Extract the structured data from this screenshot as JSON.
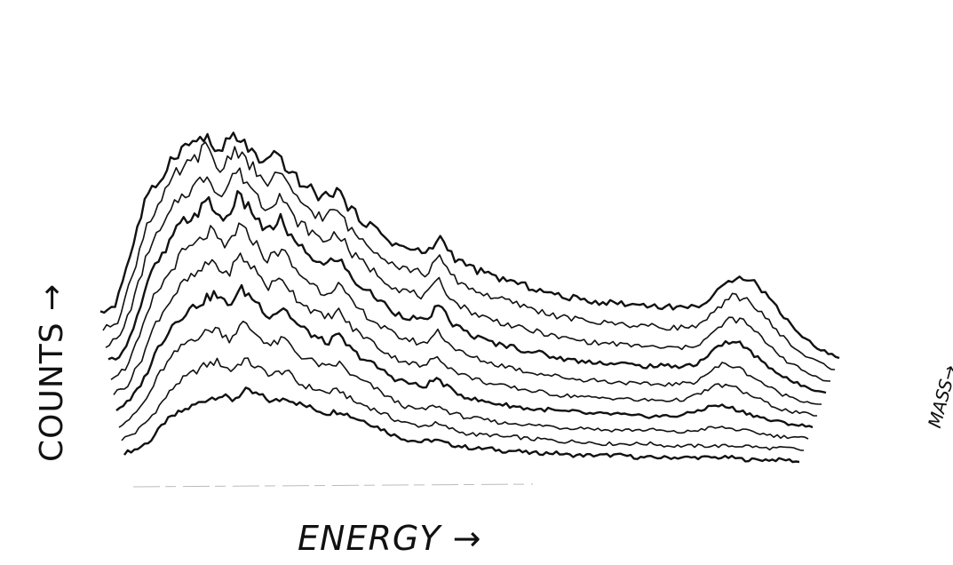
{
  "chart_data": {
    "type": "line",
    "style": "stacked-waterfall",
    "xlabel": "ENERGY →",
    "ylabel": "COUNTS →",
    "zlabel": "MASS→",
    "grid": false,
    "legend": "none",
    "line_color": "#111111",
    "x": [
      0,
      0.02,
      0.04,
      0.06,
      0.08,
      0.1,
      0.12,
      0.14,
      0.16,
      0.18,
      0.2,
      0.22,
      0.24,
      0.26,
      0.28,
      0.3,
      0.32,
      0.34,
      0.36,
      0.38,
      0.4,
      0.42,
      0.44,
      0.46,
      0.48,
      0.5,
      0.52,
      0.54,
      0.56,
      0.58,
      0.6,
      0.62,
      0.64,
      0.66,
      0.68,
      0.7,
      0.72,
      0.74,
      0.76,
      0.78,
      0.8,
      0.82,
      0.84,
      0.86,
      0.88,
      0.9,
      0.92,
      0.94,
      0.96,
      0.98,
      1.0
    ],
    "series": [
      {
        "values": [
          0.04,
          0.06,
          0.1,
          0.18,
          0.22,
          0.25,
          0.28,
          0.3,
          0.28,
          0.32,
          0.3,
          0.27,
          0.29,
          0.26,
          0.24,
          0.22,
          0.23,
          0.2,
          0.18,
          0.15,
          0.12,
          0.1,
          0.09,
          0.1,
          0.08,
          0.07,
          0.06,
          0.06,
          0.05,
          0.05,
          0.04,
          0.04,
          0.04,
          0.03,
          0.03,
          0.03,
          0.03,
          0.03,
          0.02,
          0.02,
          0.02,
          0.02,
          0.02,
          0.02,
          0.02,
          0.02,
          0.01,
          0.01,
          0.01,
          0.01,
          0.0
        ]
      },
      {
        "values": [
          0.05,
          0.08,
          0.14,
          0.22,
          0.3,
          0.34,
          0.38,
          0.4,
          0.36,
          0.41,
          0.37,
          0.34,
          0.36,
          0.3,
          0.28,
          0.26,
          0.27,
          0.22,
          0.2,
          0.17,
          0.14,
          0.12,
          0.11,
          0.12,
          0.1,
          0.08,
          0.07,
          0.07,
          0.06,
          0.06,
          0.05,
          0.05,
          0.04,
          0.04,
          0.04,
          0.03,
          0.03,
          0.03,
          0.03,
          0.03,
          0.02,
          0.02,
          0.02,
          0.02,
          0.02,
          0.02,
          0.02,
          0.01,
          0.01,
          0.01,
          0.0
        ]
      },
      {
        "values": [
          0.06,
          0.1,
          0.18,
          0.3,
          0.38,
          0.44,
          0.47,
          0.5,
          0.45,
          0.52,
          0.47,
          0.42,
          0.45,
          0.38,
          0.35,
          0.32,
          0.34,
          0.28,
          0.25,
          0.21,
          0.17,
          0.14,
          0.13,
          0.15,
          0.12,
          0.1,
          0.09,
          0.08,
          0.07,
          0.07,
          0.06,
          0.06,
          0.05,
          0.05,
          0.05,
          0.04,
          0.04,
          0.04,
          0.04,
          0.04,
          0.03,
          0.03,
          0.04,
          0.05,
          0.05,
          0.04,
          0.03,
          0.02,
          0.01,
          0.01,
          0.0
        ]
      },
      {
        "values": [
          0.08,
          0.12,
          0.22,
          0.36,
          0.46,
          0.52,
          0.56,
          0.6,
          0.55,
          0.62,
          0.57,
          0.5,
          0.54,
          0.46,
          0.42,
          0.38,
          0.41,
          0.34,
          0.3,
          0.26,
          0.22,
          0.2,
          0.18,
          0.22,
          0.17,
          0.14,
          0.12,
          0.11,
          0.1,
          0.09,
          0.08,
          0.08,
          0.07,
          0.07,
          0.06,
          0.06,
          0.06,
          0.05,
          0.05,
          0.05,
          0.05,
          0.06,
          0.08,
          0.1,
          0.09,
          0.07,
          0.05,
          0.03,
          0.02,
          0.01,
          0.0
        ]
      },
      {
        "values": [
          0.1,
          0.14,
          0.26,
          0.42,
          0.52,
          0.6,
          0.64,
          0.7,
          0.63,
          0.72,
          0.66,
          0.58,
          0.62,
          0.53,
          0.48,
          0.44,
          0.47,
          0.39,
          0.35,
          0.3,
          0.26,
          0.24,
          0.22,
          0.27,
          0.21,
          0.18,
          0.16,
          0.14,
          0.13,
          0.12,
          0.11,
          0.1,
          0.09,
          0.09,
          0.08,
          0.08,
          0.08,
          0.07,
          0.07,
          0.07,
          0.07,
          0.08,
          0.11,
          0.14,
          0.13,
          0.1,
          0.07,
          0.04,
          0.02,
          0.01,
          0.0
        ]
      },
      {
        "values": [
          0.12,
          0.16,
          0.3,
          0.48,
          0.58,
          0.68,
          0.72,
          0.78,
          0.7,
          0.8,
          0.74,
          0.65,
          0.7,
          0.6,
          0.55,
          0.5,
          0.54,
          0.45,
          0.4,
          0.35,
          0.31,
          0.29,
          0.27,
          0.33,
          0.26,
          0.22,
          0.2,
          0.18,
          0.17,
          0.15,
          0.14,
          0.13,
          0.12,
          0.11,
          0.11,
          0.1,
          0.1,
          0.09,
          0.09,
          0.09,
          0.09,
          0.1,
          0.14,
          0.18,
          0.17,
          0.13,
          0.09,
          0.05,
          0.03,
          0.01,
          0.0
        ]
      },
      {
        "values": [
          0.14,
          0.18,
          0.34,
          0.54,
          0.64,
          0.76,
          0.8,
          0.86,
          0.77,
          0.88,
          0.82,
          0.72,
          0.78,
          0.67,
          0.62,
          0.57,
          0.61,
          0.51,
          0.46,
          0.41,
          0.36,
          0.34,
          0.32,
          0.39,
          0.31,
          0.27,
          0.24,
          0.22,
          0.21,
          0.19,
          0.18,
          0.16,
          0.15,
          0.14,
          0.14,
          0.13,
          0.13,
          0.12,
          0.12,
          0.12,
          0.12,
          0.13,
          0.18,
          0.23,
          0.22,
          0.17,
          0.12,
          0.07,
          0.04,
          0.02,
          0.0
        ]
      },
      {
        "values": [
          0.16,
          0.2,
          0.38,
          0.6,
          0.7,
          0.82,
          0.87,
          0.93,
          0.83,
          0.95,
          0.88,
          0.78,
          0.84,
          0.73,
          0.68,
          0.63,
          0.67,
          0.57,
          0.52,
          0.47,
          0.42,
          0.4,
          0.38,
          0.45,
          0.36,
          0.32,
          0.29,
          0.27,
          0.25,
          0.23,
          0.22,
          0.2,
          0.19,
          0.18,
          0.17,
          0.17,
          0.16,
          0.16,
          0.15,
          0.15,
          0.15,
          0.17,
          0.22,
          0.28,
          0.27,
          0.21,
          0.15,
          0.09,
          0.05,
          0.02,
          0.0
        ]
      },
      {
        "values": [
          0.18,
          0.22,
          0.42,
          0.66,
          0.76,
          0.88,
          0.93,
          1.0,
          0.89,
          1.0,
          0.93,
          0.83,
          0.89,
          0.78,
          0.73,
          0.68,
          0.72,
          0.62,
          0.57,
          0.52,
          0.47,
          0.45,
          0.43,
          0.5,
          0.41,
          0.37,
          0.34,
          0.32,
          0.3,
          0.28,
          0.26,
          0.24,
          0.23,
          0.22,
          0.21,
          0.21,
          0.2,
          0.2,
          0.19,
          0.19,
          0.19,
          0.21,
          0.27,
          0.33,
          0.32,
          0.25,
          0.18,
          0.11,
          0.06,
          0.03,
          0.0
        ]
      },
      {
        "values": [
          0.2,
          0.24,
          0.46,
          0.7,
          0.8,
          0.92,
          0.96,
          1.0,
          0.92,
          1.0,
          0.95,
          0.86,
          0.92,
          0.82,
          0.77,
          0.72,
          0.76,
          0.66,
          0.61,
          0.56,
          0.51,
          0.49,
          0.47,
          0.54,
          0.45,
          0.41,
          0.38,
          0.36,
          0.34,
          0.32,
          0.3,
          0.28,
          0.27,
          0.26,
          0.25,
          0.25,
          0.24,
          0.24,
          0.23,
          0.23,
          0.23,
          0.25,
          0.31,
          0.37,
          0.36,
          0.29,
          0.21,
          0.13,
          0.07,
          0.03,
          0.0
        ]
      }
    ]
  }
}
